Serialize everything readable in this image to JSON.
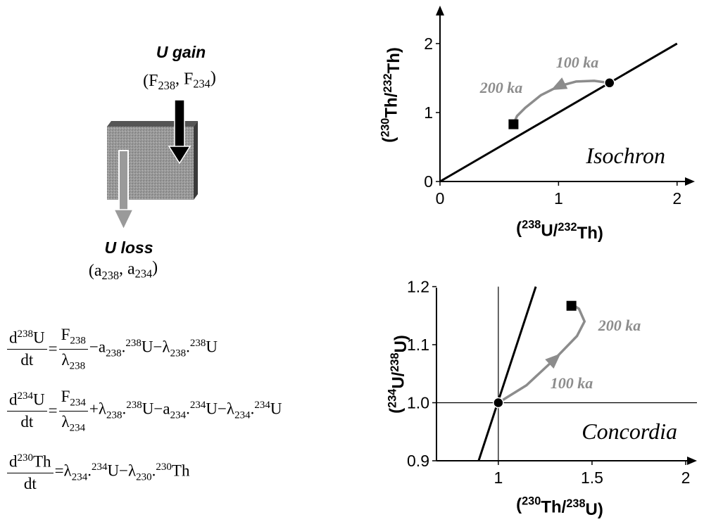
{
  "diagram": {
    "gain_label": "U gain",
    "gain_params": [
      {
        "text": "(F"
      },
      {
        "sub": "238"
      },
      {
        "text": ", F"
      },
      {
        "sub": "234"
      },
      {
        "text": ")"
      }
    ],
    "loss_label": "U loss",
    "loss_params": [
      {
        "text": "(a"
      },
      {
        "sub": "238"
      },
      {
        "text": ", a"
      },
      {
        "sub": "234"
      },
      {
        "text": ")"
      }
    ]
  },
  "equations": [
    [
      {
        "frac": {
          "num": [
            {
              "text": "d"
            },
            {
              "sup": "238"
            },
            {
              "text": "U"
            }
          ],
          "den": [
            {
              "text": "dt"
            }
          ]
        }
      },
      {
        "run": [
          {
            "text": "="
          }
        ]
      },
      {
        "frac": {
          "num": [
            {
              "text": "F"
            },
            {
              "sub": "238"
            }
          ],
          "den": [
            {
              "text": "λ"
            },
            {
              "sub": "238"
            }
          ]
        }
      },
      {
        "run": [
          {
            "text": "−a"
          },
          {
            "sub": "238"
          },
          {
            "text": "."
          },
          {
            "sup": "238"
          },
          {
            "text": "U−λ"
          },
          {
            "sub": "238"
          },
          {
            "text": "."
          },
          {
            "sup": "238"
          },
          {
            "text": "U"
          }
        ]
      }
    ],
    [
      {
        "frac": {
          "num": [
            {
              "text": "d"
            },
            {
              "sup": "234"
            },
            {
              "text": "U"
            }
          ],
          "den": [
            {
              "text": "dt"
            }
          ]
        }
      },
      {
        "run": [
          {
            "text": "="
          }
        ]
      },
      {
        "frac": {
          "num": [
            {
              "text": "F"
            },
            {
              "sub": "234"
            }
          ],
          "den": [
            {
              "text": "λ"
            },
            {
              "sub": "234"
            }
          ]
        }
      },
      {
        "run": [
          {
            "text": "+λ"
          },
          {
            "sub": "238"
          },
          {
            "text": "."
          },
          {
            "sup": "238"
          },
          {
            "text": "U−a"
          },
          {
            "sub": "234"
          },
          {
            "text": "."
          },
          {
            "sup": "234"
          },
          {
            "text": "U−λ"
          },
          {
            "sub": "234"
          },
          {
            "text": "."
          },
          {
            "sup": "234"
          },
          {
            "text": "U"
          }
        ]
      }
    ],
    [
      {
        "frac": {
          "num": [
            {
              "text": "d"
            },
            {
              "sup": "230"
            },
            {
              "text": "Th"
            }
          ],
          "den": [
            {
              "text": "dt"
            }
          ]
        }
      },
      {
        "run": [
          {
            "text": "=λ"
          },
          {
            "sub": "234"
          },
          {
            "text": "."
          },
          {
            "sup": "234"
          },
          {
            "text": "U−λ"
          },
          {
            "sub": "230"
          },
          {
            "text": "."
          },
          {
            "sup": "230"
          },
          {
            "text": "Th"
          }
        ]
      }
    ]
  ],
  "chart_data": [
    {
      "type": "line",
      "title": "Isochron",
      "xlabel": [
        {
          "text": "("
        },
        {
          "sup": "238"
        },
        {
          "text": "U/"
        },
        {
          "sup": "232"
        },
        {
          "text": "Th)"
        }
      ],
      "ylabel": [
        {
          "text": "("
        },
        {
          "sup": "230"
        },
        {
          "text": "Th/"
        },
        {
          "sup": "232"
        },
        {
          "text": "Th)"
        }
      ],
      "xlim": [
        0,
        2.15
      ],
      "ylim": [
        0,
        2.55
      ],
      "xticks": [
        0,
        1,
        2
      ],
      "yticks": [
        0,
        1,
        2
      ],
      "series": [
        {
          "color": "#000000",
          "width": 3,
          "x": [
            0,
            2
          ],
          "values": [
            0,
            2
          ]
        },
        {
          "color": "#8c8c8c",
          "width": 3.5,
          "x": [
            1.43,
            1.3,
            1.15,
            1.0,
            0.85,
            0.72,
            0.65,
            0.62
          ],
          "values": [
            1.43,
            1.46,
            1.45,
            1.38,
            1.25,
            1.07,
            0.95,
            0.83
          ]
        }
      ],
      "points": [
        {
          "x": 1.43,
          "y": 1.43,
          "marker": "circle"
        },
        {
          "x": 0.62,
          "y": 0.83,
          "marker": "square"
        }
      ],
      "annotations": [
        "100 ka",
        "200 ka"
      ]
    },
    {
      "type": "line",
      "title": "Concordia",
      "xlabel": [
        {
          "text": "("
        },
        {
          "sup": "230"
        },
        {
          "text": "Th/"
        },
        {
          "sup": "238"
        },
        {
          "text": "U)"
        }
      ],
      "ylabel": [
        {
          "text": "("
        },
        {
          "sup": "234"
        },
        {
          "text": "U/"
        },
        {
          "sup": "238"
        },
        {
          "text": "U)"
        }
      ],
      "xlim": [
        0.67,
        2.06
      ],
      "ylim": [
        0.9,
        1.203
      ],
      "xticks": [
        1,
        1.5,
        2
      ],
      "yticks": [
        0.9,
        {
          "value": 1,
          "label": "1.0"
        },
        1.1,
        1.2
      ],
      "series": [
        {
          "color": "#000000",
          "width": 1.2,
          "x": [
            1,
            1
          ],
          "values": [
            0.9,
            1.2
          ]
        },
        {
          "color": "#000000",
          "width": 1.2,
          "x": [
            0.67,
            2.06
          ],
          "values": [
            1,
            1
          ]
        },
        {
          "color": "#000000",
          "width": 3,
          "x": [
            0.895,
            1.2
          ],
          "values": [
            0.9,
            1.2
          ]
        },
        {
          "color": "#8c8c8c",
          "width": 3.5,
          "x": [
            1,
            1.15,
            1.3,
            1.42,
            1.46,
            1.43,
            1.39
          ],
          "values": [
            1,
            1.03,
            1.075,
            1.115,
            1.14,
            1.162,
            1.17
          ]
        }
      ],
      "points": [
        {
          "x": 1,
          "y": 1,
          "marker": "circle"
        },
        {
          "x": 1.39,
          "y": 1.167,
          "marker": "square"
        }
      ],
      "annotations": [
        "100 ka",
        "200 ka"
      ]
    }
  ]
}
